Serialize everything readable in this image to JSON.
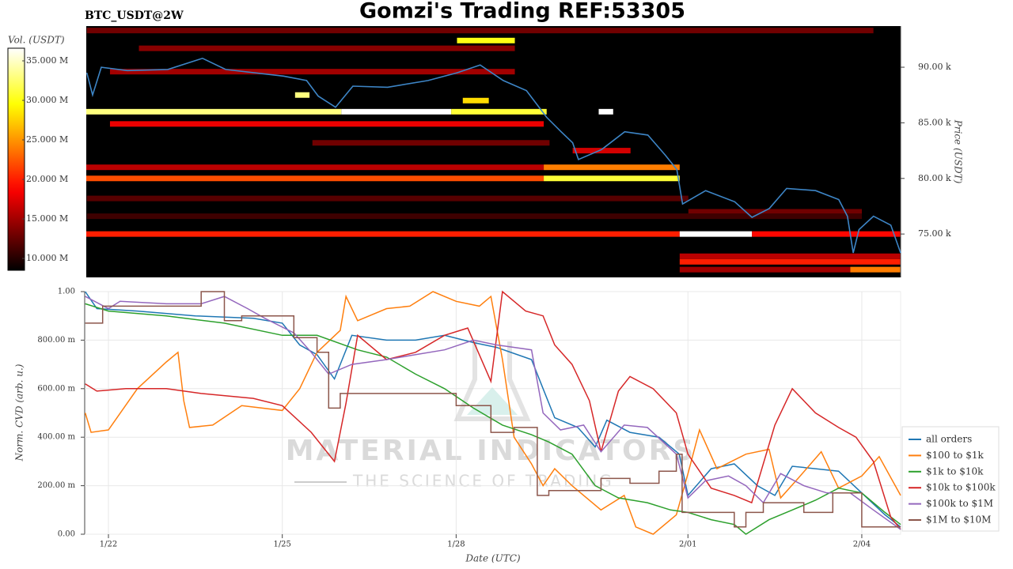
{
  "chart_data": [
    {
      "type": "heatmap",
      "title": "Gomzi's Trading REF:53305",
      "subtitle": "BTC_USDT@2W",
      "ylabel": "Price (USDT)",
      "colorbar_label": "Vol. (USDT)",
      "colormap": "hot",
      "xlim": [
        21.59,
        35.67
      ],
      "ylim": [
        71100,
        93700
      ],
      "yticks": [
        {
          "value": 75000,
          "label": "75.00 k"
        },
        {
          "value": 80000,
          "label": "80.00 k"
        },
        {
          "value": 85000,
          "label": "85.00 k"
        },
        {
          "value": 90000,
          "label": "90.00 k"
        }
      ],
      "clim": [
        8500000,
        36600000
      ],
      "cticks": [
        {
          "value": 10000000,
          "label": "10.000 M"
        },
        {
          "value": 15000000,
          "label": "15.000 M"
        },
        {
          "value": 20000000,
          "label": "20.000 M"
        },
        {
          "value": 25000000,
          "label": "25.000 M"
        },
        {
          "value": 30000000,
          "label": "30.000 M"
        },
        {
          "value": 35000000,
          "label": "35.000 M"
        }
      ],
      "bands": [
        {
          "price": 93300,
          "x": [
            21.6,
            35.2
          ],
          "volume": 13000000
        },
        {
          "price": 91700,
          "x": [
            22.5,
            29.0
          ],
          "volume": 14000000
        },
        {
          "price": 92400,
          "x": [
            28.0,
            29.0
          ],
          "volume": 30000000
        },
        {
          "price": 89600,
          "x": [
            22.0,
            29.0
          ],
          "volume": 15000000
        },
        {
          "price": 87000,
          "x": [
            28.1,
            28.55
          ],
          "volume": 28000000
        },
        {
          "price": 87500,
          "x": [
            25.2,
            25.45
          ],
          "volume": 33000000
        },
        {
          "price": 86000,
          "x": [
            21.59,
            26.0
          ],
          "volume": 33000000
        },
        {
          "price": 86000,
          "x": [
            26.0,
            27.9
          ],
          "volume": 37000000
        },
        {
          "price": 86000,
          "x": [
            27.9,
            29.55
          ],
          "volume": 31000000
        },
        {
          "price": 86000,
          "x": [
            30.45,
            30.7
          ],
          "volume": 37000000
        },
        {
          "price": 84900,
          "x": [
            22.0,
            29.5
          ],
          "volume": 18000000
        },
        {
          "price": 83200,
          "x": [
            25.5,
            29.6
          ],
          "volume": 13000000
        },
        {
          "price": 82500,
          "x": [
            30.0,
            31.0
          ],
          "volume": 17000000
        },
        {
          "price": 81000,
          "x": [
            21.59,
            29.5
          ],
          "volume": 16000000
        },
        {
          "price": 81000,
          "x": [
            29.5,
            31.85
          ],
          "volume": 24000000
        },
        {
          "price": 80000,
          "x": [
            21.59,
            29.5
          ],
          "volume": 22000000
        },
        {
          "price": 80000,
          "x": [
            29.5,
            31.85
          ],
          "volume": 31000000
        },
        {
          "price": 78200,
          "x": [
            21.6,
            32.0
          ],
          "volume": 12000000
        },
        {
          "price": 77000,
          "x": [
            32.0,
            35.0
          ],
          "volume": 13000000
        },
        {
          "price": 76600,
          "x": [
            21.6,
            35.0
          ],
          "volume": 11000000
        },
        {
          "price": 75000,
          "x": [
            21.59,
            31.85
          ],
          "volume": 20000000
        },
        {
          "price": 75000,
          "x": [
            31.85,
            33.1
          ],
          "volume": 38000000
        },
        {
          "price": 75000,
          "x": [
            33.1,
            35.67
          ],
          "volume": 19000000
        },
        {
          "price": 73000,
          "x": [
            31.85,
            35.67
          ],
          "volume": 16000000
        },
        {
          "price": 72500,
          "x": [
            31.85,
            35.67
          ],
          "volume": 20000000
        },
        {
          "price": 71800,
          "x": [
            31.85,
            34.8
          ],
          "volume": 15000000
        },
        {
          "price": 71800,
          "x": [
            34.8,
            35.67
          ],
          "volume": 24000000
        }
      ],
      "price_line": {
        "color": "#3d85c6",
        "x": [
          21.6,
          21.7,
          21.85,
          22.3,
          23.0,
          23.6,
          24.0,
          25.0,
          25.4,
          25.6,
          25.9,
          26.2,
          26.8,
          27.5,
          28.0,
          28.4,
          28.8,
          29.2,
          29.55,
          29.8,
          30.0,
          30.1,
          30.5,
          30.9,
          31.3,
          31.6,
          31.8,
          31.9,
          32.3,
          32.8,
          33.1,
          33.4,
          33.7,
          34.2,
          34.6,
          34.75,
          34.85,
          34.95,
          35.2,
          35.5,
          35.67
        ],
        "values": [
          89500,
          87500,
          90000,
          89700,
          89800,
          90800,
          89800,
          89200,
          88800,
          87400,
          86400,
          88300,
          88200,
          88800,
          89500,
          90200,
          88800,
          87900,
          85500,
          84200,
          83200,
          81700,
          82600,
          84200,
          83900,
          82100,
          80800,
          77700,
          78900,
          77900,
          76500,
          77300,
          79100,
          78900,
          78100,
          76600,
          73300,
          75400,
          76600,
          75800,
          73300
        ]
      }
    },
    {
      "type": "line",
      "xlabel": "Date (UTC)",
      "ylabel": "Norm. CVD (arb. u.)",
      "xlim": [
        21.59,
        35.67
      ],
      "ylim": [
        0,
        1
      ],
      "xticks": [
        {
          "value": 22,
          "label": "1/22"
        },
        {
          "value": 25,
          "label": "1/25"
        },
        {
          "value": 28,
          "label": "1/28"
        },
        {
          "value": 32,
          "label": "2/01"
        },
        {
          "value": 35,
          "label": "2/04"
        }
      ],
      "yticks": [
        {
          "value": 0,
          "label": "0.00"
        },
        {
          "value": 0.2,
          "label": "200.00 m"
        },
        {
          "value": 0.4,
          "label": "400.00 m"
        },
        {
          "value": 0.6,
          "label": "600.00 m"
        },
        {
          "value": 0.8,
          "label": "800.00 m"
        },
        {
          "value": 1,
          "label": "1.00"
        }
      ],
      "grid": true,
      "legend": "lower right",
      "annotations": [
        "MATERIAL INDICATORS",
        "THE SCIENCE OF TRADING"
      ],
      "series": [
        {
          "name": "all orders",
          "color": "#1f77b4",
          "step": false,
          "x": [
            21.6,
            21.8,
            22.5,
            23.5,
            24.5,
            25.0,
            25.3,
            25.6,
            25.9,
            26.2,
            26.8,
            27.3,
            27.8,
            28.3,
            28.7,
            29.3,
            29.5,
            29.7,
            30.1,
            30.4,
            30.6,
            31.0,
            31.5,
            31.85,
            32.0,
            32.4,
            32.8,
            33.2,
            33.5,
            33.8,
            34.2,
            34.6,
            35.0,
            35.4,
            35.67
          ],
          "values": [
            1.0,
            0.93,
            0.92,
            0.9,
            0.89,
            0.87,
            0.78,
            0.74,
            0.64,
            0.82,
            0.8,
            0.8,
            0.82,
            0.79,
            0.77,
            0.72,
            0.6,
            0.48,
            0.44,
            0.36,
            0.47,
            0.42,
            0.4,
            0.33,
            0.16,
            0.27,
            0.29,
            0.2,
            0.16,
            0.28,
            0.27,
            0.26,
            0.17,
            0.08,
            0.03
          ]
        },
        {
          "name": "$100 to $1k",
          "color": "#ff7f0e",
          "step": false,
          "x": [
            21.6,
            21.7,
            22.0,
            22.5,
            23.0,
            23.2,
            23.3,
            23.4,
            23.8,
            24.3,
            25.0,
            25.3,
            25.6,
            26.0,
            26.1,
            26.3,
            26.8,
            27.2,
            27.6,
            28.0,
            28.4,
            28.6,
            28.8,
            29.0,
            29.3,
            29.5,
            29.7,
            30.0,
            30.5,
            30.9,
            31.1,
            31.4,
            31.8,
            32.0,
            32.2,
            32.5,
            33.0,
            33.4,
            33.6,
            33.9,
            34.3,
            34.6,
            35.0,
            35.3,
            35.67
          ],
          "values": [
            0.5,
            0.42,
            0.43,
            0.6,
            0.71,
            0.75,
            0.55,
            0.44,
            0.45,
            0.53,
            0.51,
            0.6,
            0.75,
            0.84,
            0.98,
            0.88,
            0.93,
            0.94,
            1.0,
            0.96,
            0.94,
            0.98,
            0.72,
            0.4,
            0.29,
            0.2,
            0.27,
            0.2,
            0.1,
            0.16,
            0.03,
            0.0,
            0.08,
            0.25,
            0.43,
            0.27,
            0.33,
            0.35,
            0.15,
            0.23,
            0.34,
            0.19,
            0.24,
            0.32,
            0.16
          ]
        },
        {
          "name": "$1k to $10k",
          "color": "#2ca02c",
          "step": false,
          "x": [
            21.6,
            22.0,
            23.0,
            24.0,
            25.0,
            25.6,
            26.3,
            26.8,
            27.3,
            27.8,
            28.3,
            28.8,
            29.3,
            29.6,
            30.0,
            30.4,
            30.8,
            31.3,
            31.7,
            32.0,
            32.4,
            32.8,
            33.0,
            33.4,
            33.8,
            34.2,
            34.6,
            35.0,
            35.4,
            35.67
          ],
          "values": [
            0.95,
            0.92,
            0.9,
            0.87,
            0.82,
            0.82,
            0.76,
            0.73,
            0.66,
            0.6,
            0.52,
            0.45,
            0.41,
            0.38,
            0.33,
            0.2,
            0.15,
            0.13,
            0.1,
            0.09,
            0.06,
            0.04,
            0.0,
            0.06,
            0.1,
            0.14,
            0.19,
            0.17,
            0.09,
            0.04
          ]
        },
        {
          "name": "$10k to $100k",
          "color": "#d62728",
          "step": false,
          "x": [
            21.6,
            21.8,
            22.3,
            23.0,
            23.6,
            24.5,
            25.0,
            25.5,
            25.9,
            26.1,
            26.3,
            26.8,
            27.3,
            27.8,
            28.2,
            28.6,
            28.8,
            29.2,
            29.5,
            29.7,
            30.0,
            30.3,
            30.5,
            30.8,
            31.0,
            31.4,
            31.8,
            32.0,
            32.4,
            32.8,
            33.1,
            33.5,
            33.8,
            34.2,
            34.6,
            34.9,
            35.2,
            35.5,
            35.67
          ],
          "values": [
            0.62,
            0.59,
            0.6,
            0.6,
            0.58,
            0.56,
            0.53,
            0.42,
            0.3,
            0.54,
            0.82,
            0.72,
            0.75,
            0.82,
            0.85,
            0.63,
            1.0,
            0.92,
            0.9,
            0.78,
            0.7,
            0.55,
            0.34,
            0.59,
            0.65,
            0.6,
            0.5,
            0.33,
            0.19,
            0.16,
            0.13,
            0.45,
            0.6,
            0.5,
            0.44,
            0.4,
            0.3,
            0.07,
            0.02
          ]
        },
        {
          "name": "$100k to $1M",
          "color": "#9467bd",
          "step": false,
          "x": [
            21.6,
            22.0,
            22.2,
            23.0,
            23.6,
            24.0,
            24.4,
            24.7,
            25.2,
            25.5,
            25.8,
            26.2,
            26.8,
            27.3,
            27.8,
            28.3,
            28.7,
            29.3,
            29.5,
            29.8,
            30.2,
            30.5,
            30.9,
            31.3,
            31.8,
            32.0,
            32.3,
            32.7,
            33.0,
            33.3,
            33.6,
            34.0,
            34.4,
            34.8,
            35.2,
            35.67
          ],
          "values": [
            0.98,
            0.93,
            0.96,
            0.95,
            0.95,
            0.98,
            0.93,
            0.89,
            0.83,
            0.75,
            0.66,
            0.7,
            0.72,
            0.74,
            0.76,
            0.8,
            0.78,
            0.76,
            0.5,
            0.43,
            0.45,
            0.34,
            0.45,
            0.44,
            0.33,
            0.15,
            0.22,
            0.24,
            0.2,
            0.13,
            0.25,
            0.2,
            0.17,
            0.17,
            0.1,
            0.02
          ]
        },
        {
          "name": "$1M to $10M",
          "color": "#8c564b",
          "step": true,
          "x": [
            21.6,
            21.9,
            23.3,
            23.6,
            24.0,
            24.3,
            25.2,
            25.6,
            25.8,
            26.0,
            27.9,
            28.0,
            28.6,
            29.0,
            29.4,
            29.6,
            30.5,
            31.0,
            31.5,
            31.8,
            31.9,
            32.3,
            32.8,
            33.0,
            33.3,
            34.0,
            34.5,
            35.0,
            35.67
          ],
          "values": [
            0.87,
            0.94,
            0.94,
            1.0,
            0.88,
            0.9,
            0.81,
            0.75,
            0.52,
            0.58,
            0.58,
            0.53,
            0.42,
            0.44,
            0.16,
            0.18,
            0.23,
            0.21,
            0.26,
            0.33,
            0.09,
            0.09,
            0.03,
            0.09,
            0.13,
            0.09,
            0.17,
            0.03,
            0.03
          ]
        }
      ]
    }
  ]
}
